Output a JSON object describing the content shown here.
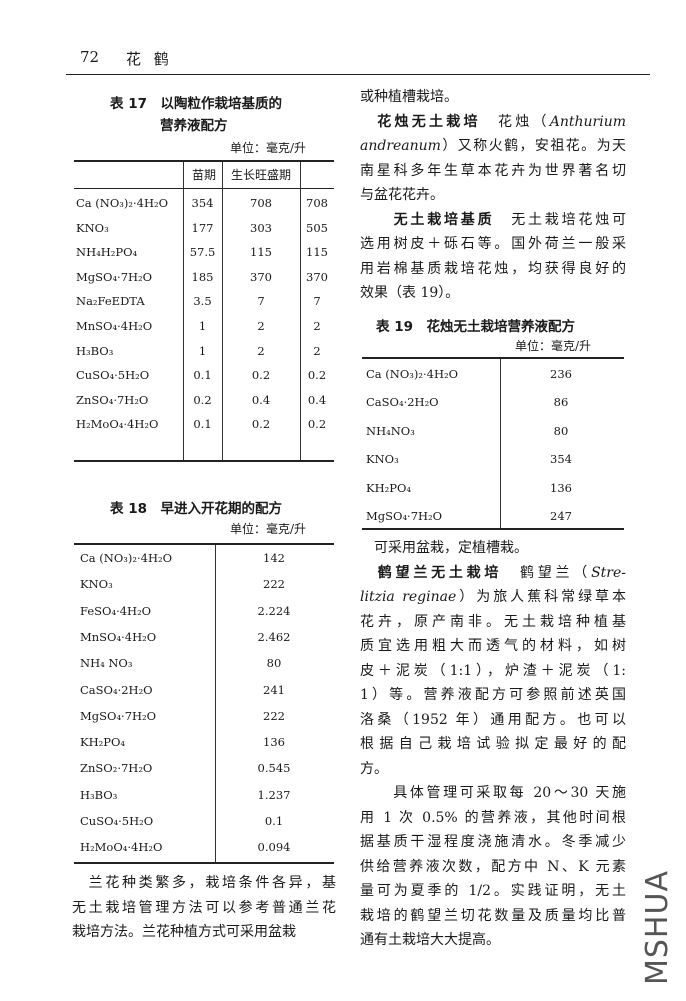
{
  "header": {
    "page_number": "72",
    "running_title": "花 鹤"
  },
  "table17": {
    "title_line1": "表 17　以陶粒作栽培基质的",
    "title_line2": "营养液配方",
    "unit": "单位：毫克/升",
    "columns": [
      "",
      "苗期",
      "生长旺盛期",
      ""
    ],
    "rows": [
      [
        "Ca (NO₃)₂·4H₂O",
        "354",
        "708",
        "708"
      ],
      [
        "KNO₃",
        "177",
        "303",
        "505"
      ],
      [
        "NH₄H₂PO₄",
        "57.5",
        "115",
        "115"
      ],
      [
        "MgSO₄·7H₂O",
        "185",
        "370",
        "370"
      ],
      [
        "Na₂FeEDTA",
        "3.5",
        "7",
        "7"
      ],
      [
        "MnSO₄·4H₂O",
        "1",
        "2",
        "2"
      ],
      [
        "H₃BO₃",
        "1",
        "2",
        "2"
      ],
      [
        "CuSO₄·5H₂O",
        "0.1",
        "0.2",
        "0.2"
      ],
      [
        "ZnSO₄·7H₂O",
        "0.2",
        "0.4",
        "0.4"
      ],
      [
        "H₂MoO₄·4H₂O",
        "0.1",
        "0.2",
        "0.2"
      ]
    ]
  },
  "table18": {
    "title": "表 18　早进入开花期的配方",
    "unit": "单位：毫克/升",
    "rows": [
      [
        "Ca (NO₃)₂·4H₂O",
        "142"
      ],
      [
        "KNO₃",
        "222"
      ],
      [
        "FeSO₄·4H₂O",
        "2.224"
      ],
      [
        "MnSO₄·4H₂O",
        "2.462"
      ],
      [
        "NH₄ NO₃",
        "80"
      ],
      [
        "CaSO₄·2H₂O",
        "241"
      ],
      [
        "MgSO₄·7H₂O",
        "222"
      ],
      [
        "KH₂PO₄",
        "136"
      ],
      [
        "ZnSO₂·7H₂O",
        "0.545"
      ],
      [
        "H₃BO₃",
        "1.237"
      ],
      [
        "CuSO₄·5H₂O",
        "0.1"
      ],
      [
        "H₂MoO₄·4H₂O",
        "0.094"
      ]
    ]
  },
  "table19": {
    "title": "表 19　花烛无土栽培营养液配方",
    "unit": "单位：毫克/升",
    "rows": [
      [
        "Ca (NO₃)₂·4H₂O",
        "236"
      ],
      [
        "CaSO₄·2H₂O",
        "86"
      ],
      [
        "NH₄NO₃",
        "80"
      ],
      [
        "KNO₃",
        "354"
      ],
      [
        "KH₂PO₄",
        "136"
      ],
      [
        "MgSO₄·7H₂O",
        "247"
      ]
    ]
  },
  "left_text": [
    [
      [
        "n",
        "　兰花种类繁多，栽培条件各异，基"
      ]
    ],
    [
      [
        "n",
        "无土栽培管理方法可以参考普通兰花"
      ]
    ],
    [
      [
        "n",
        "栽培方法。兰花种植方式可采用盆栽"
      ]
    ]
  ],
  "right_text_top": [
    [
      [
        "n",
        "或种植槽栽培。"
      ]
    ],
    [
      [
        "b",
        "　花烛无土栽培"
      ],
      [
        "n",
        "　花烛（"
      ],
      [
        "i",
        "Anthurium"
      ]
    ],
    [
      [
        "i",
        "andreanum"
      ],
      [
        "n",
        "）又称火鹤，安祖花。为天"
      ]
    ],
    [
      [
        "n",
        "南星科多年生草本花卉为世界著名切"
      ]
    ],
    [
      [
        "n",
        "与盆花花卉。"
      ]
    ],
    [
      [
        "b",
        "　　无土栽培基质"
      ],
      [
        "n",
        "　无土栽培花烛可"
      ]
    ],
    [
      [
        "n",
        "选用树皮＋砾石等。国外荷兰一般采"
      ]
    ],
    [
      [
        "n",
        "用岩棉基质栽培花烛，均获得良好的"
      ]
    ],
    [
      [
        "n",
        "效果（表 19）。"
      ]
    ]
  ],
  "right_text_bottom": [
    [
      [
        "n",
        "　可采用盆栽，定植槽栽。"
      ]
    ],
    [
      [
        "b",
        "　鹤望兰无土栽培"
      ],
      [
        "n",
        "　鹤望兰（"
      ],
      [
        "i",
        "Stre-"
      ]
    ],
    [
      [
        "i",
        "litzia reginae"
      ],
      [
        "n",
        "）为旅人蕉科常绿草本"
      ]
    ],
    [
      [
        "n",
        "花卉，原产南非。无土栽培种植基"
      ]
    ],
    [
      [
        "n",
        "质宜选用粗大而透气的材料，如树"
      ]
    ],
    [
      [
        "n",
        "皮＋泥炭（1:1），炉渣＋泥炭（1:"
      ]
    ],
    [
      [
        "n",
        "1）等。营养液配方可参照前述英国"
      ]
    ],
    [
      [
        "n",
        "洛桑（1952 年）通用配方。也可以"
      ]
    ],
    [
      [
        "n",
        "根据自己栽培试验拟定最好的配"
      ]
    ],
    [
      [
        "n",
        "方。"
      ]
    ],
    [
      [
        "n",
        "　　具体管理可采取每 20～30 天施"
      ]
    ],
    [
      [
        "n",
        "用 1 次 0.5% 的营养液，其他时间根"
      ]
    ],
    [
      [
        "n",
        "据基质干湿程度浇施清水。冬季减少"
      ]
    ],
    [
      [
        "n",
        "供给营养液次数，配方中 N、K 元素"
      ]
    ],
    [
      [
        "n",
        "量可为夏季的 1/2。实践证明，无土"
      ]
    ],
    [
      [
        "n",
        "栽培的鹤望兰切花数量及质量均比普"
      ]
    ],
    [
      [
        "n",
        "通有土栽培大大提高。"
      ]
    ]
  ],
  "watermark": "MSHUA"
}
